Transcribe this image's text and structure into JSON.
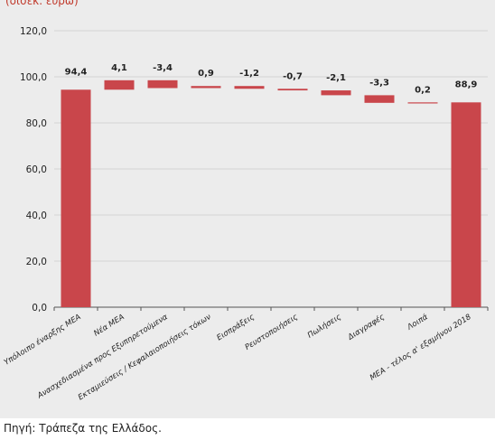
{
  "unit_label": "(δισεκ. ευρώ)",
  "source": "Πηγή: Τράπεζα της Ελλάδος.",
  "colors": {
    "bar": "#c9464b",
    "grid": "#d3d3d3",
    "axis": "#555555",
    "text": "#222222"
  },
  "chart_data": {
    "type": "bar",
    "subtype": "waterfall",
    "ylim": [
      0,
      120
    ],
    "yticks": [
      "0,0",
      "20,0",
      "40,0",
      "60,0",
      "80,0",
      "100,0",
      "120,0"
    ],
    "grid": true,
    "categories": [
      "Υπόλοιπο έναρξης ΜΕΑ",
      "Νέα ΜΕΑ",
      "Ανασχεδιασμένα προς Εξυπηρετούμενα",
      "Εκταμιεύσεις / Κεφαλαιοποιήσεις τόκων",
      "Εισπράξεις",
      "Ρευστοποιήσεις",
      "Πωλήσεις",
      "Διαγραφές",
      "Λοιπά",
      "ΜΕΑ - τέλος α' εξαμήνου 2018"
    ],
    "values": [
      94.4,
      4.1,
      -3.4,
      0.9,
      -1.2,
      -0.7,
      -2.1,
      -3.3,
      0.2,
      88.9
    ],
    "data_labels": [
      "94,4",
      "4,1",
      "-3,4",
      "0,9",
      "-1,2",
      "-0,7",
      "-2,1",
      "-3,3",
      "0,2",
      "88,9"
    ],
    "bar_roles": [
      "total",
      "delta",
      "delta",
      "delta",
      "delta",
      "delta",
      "delta",
      "delta",
      "delta",
      "total"
    ]
  }
}
